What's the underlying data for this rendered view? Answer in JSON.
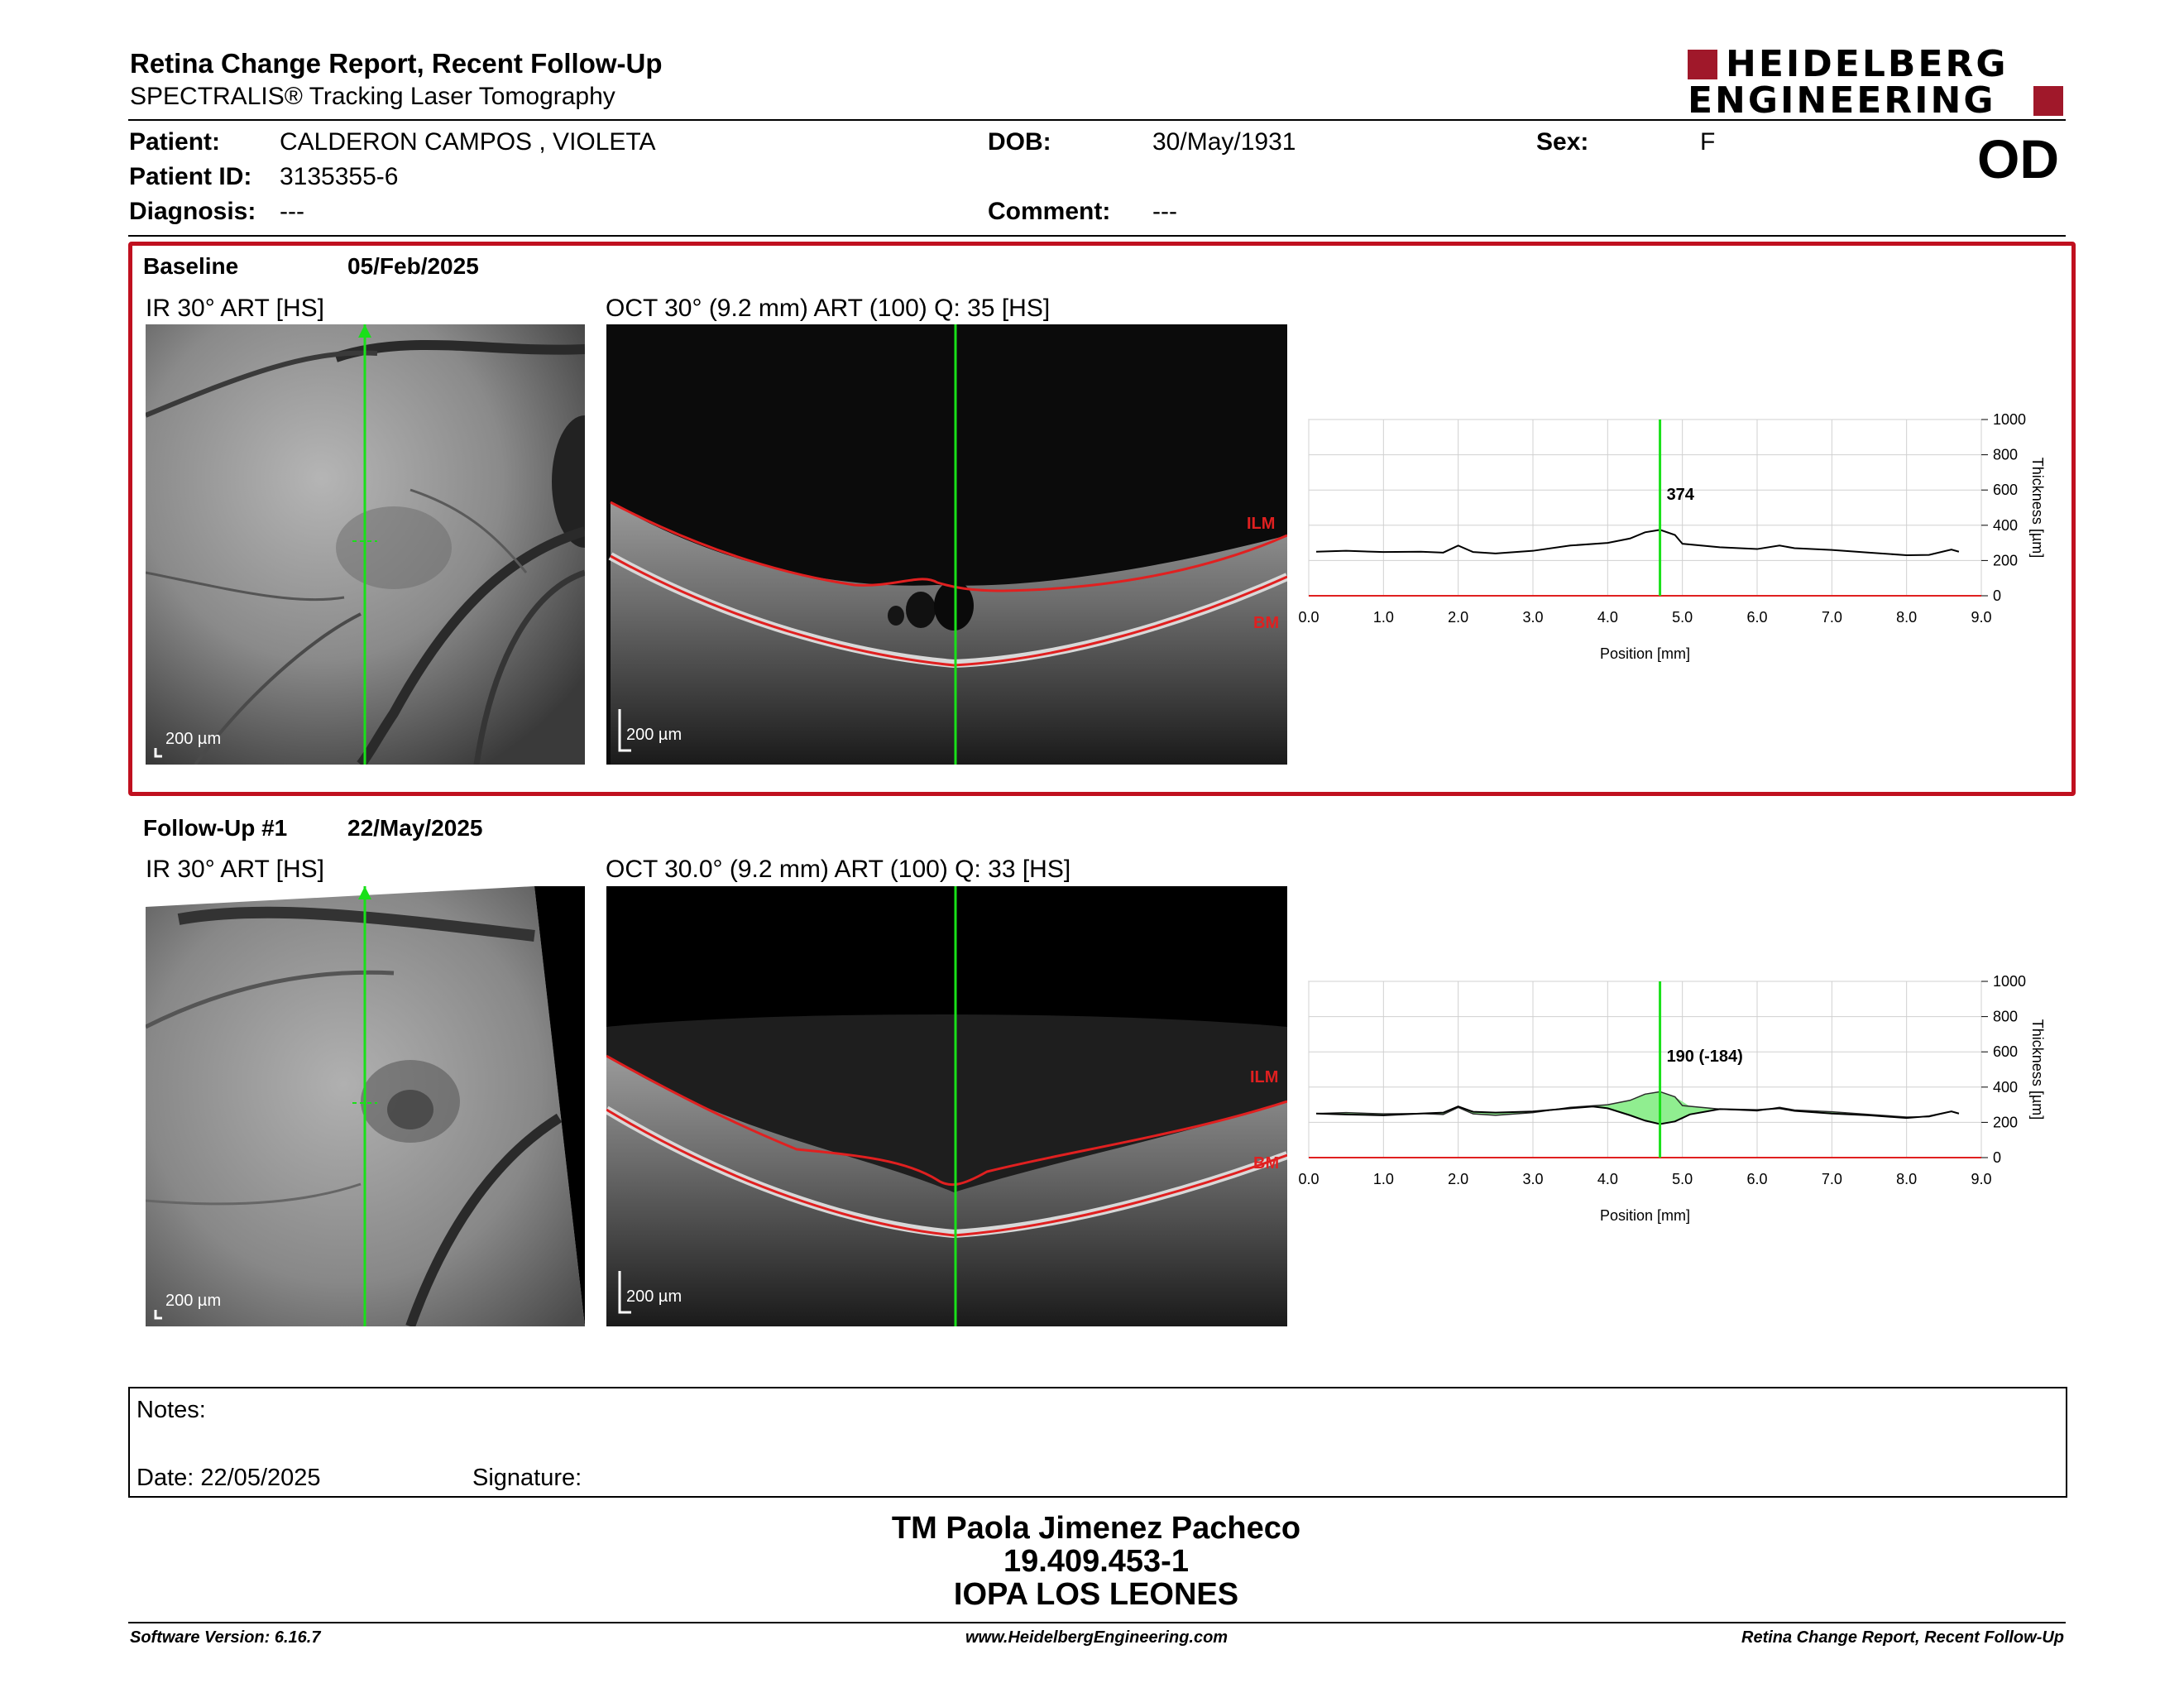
{
  "header": {
    "title": "Retina Change Report, Recent Follow-Up",
    "subtitle": "SPECTRALIS® Tracking Laser Tomography",
    "logo_line1": "HEIDELBERG",
    "logo_line2": "ENGINEERING",
    "eye": "OD"
  },
  "patient": {
    "patient_label": "Patient:",
    "patient_value": "CALDERON CAMPOS , VIOLETA",
    "id_label": "Patient ID:",
    "id_value": "3135355-6",
    "diagnosis_label": "Diagnosis:",
    "diagnosis_value": "---",
    "dob_label": "DOB:",
    "dob_value": "30/May/1931",
    "comment_label": "Comment:",
    "comment_value": "---",
    "sex_label": "Sex:",
    "sex_value": "F"
  },
  "baseline": {
    "label": "Baseline",
    "date": "05/Feb/2025",
    "ir_caption": "IR 30° ART [HS]",
    "oct_caption": "OCT 30° (9.2 mm) ART (100) Q: 35 [HS]",
    "scale": "200 µm",
    "ilm": "ILM",
    "bm": "BM",
    "chart_value_label": "374"
  },
  "followup": {
    "label": "Follow-Up #1",
    "date": "22/May/2025",
    "ir_caption": "IR 30° ART [HS]",
    "oct_caption": "OCT 30.0° (9.2 mm) ART (100) Q: 33 [HS]",
    "scale": "200 µm",
    "ilm": "ILM",
    "bm": "BM",
    "chart_value_label": "190 (-184)"
  },
  "chart_data": [
    {
      "type": "line",
      "xlabel": "Position [mm]",
      "ylabel": "Thickness [µm]",
      "xlim": [
        0,
        9.0
      ],
      "ylim": [
        0,
        1000
      ],
      "xticks": [
        "0.0",
        "1.0",
        "2.0",
        "3.0",
        "4.0",
        "5.0",
        "6.0",
        "7.0",
        "8.0",
        "9.0"
      ],
      "yticks": [
        "0",
        "200",
        "400",
        "600",
        "800",
        "1000"
      ],
      "grid": true,
      "marker_x": 4.7,
      "marker_value": "374",
      "series": [
        {
          "x": [
            0.1,
            0.5,
            1.0,
            1.5,
            1.8,
            2.0,
            2.2,
            2.5,
            3.0,
            3.5,
            4.0,
            4.3,
            4.5,
            4.7,
            4.9,
            5.0,
            5.5,
            6.0,
            6.3,
            6.5,
            7.0,
            7.5,
            8.0,
            8.3,
            8.6,
            8.7
          ],
          "values": [
            250,
            255,
            248,
            250,
            245,
            285,
            248,
            240,
            255,
            285,
            300,
            325,
            360,
            374,
            345,
            295,
            275,
            265,
            285,
            270,
            260,
            245,
            230,
            232,
            262,
            250
          ]
        }
      ]
    },
    {
      "type": "line",
      "xlabel": "Position [mm]",
      "ylabel": "Thickness [µm]",
      "xlim": [
        0,
        9.0
      ],
      "ylim": [
        0,
        1000
      ],
      "xticks": [
        "0.0",
        "1.0",
        "2.0",
        "3.0",
        "4.0",
        "5.0",
        "6.0",
        "7.0",
        "8.0",
        "9.0"
      ],
      "yticks": [
        "0",
        "200",
        "400",
        "600",
        "800",
        "1000"
      ],
      "grid": true,
      "marker_x": 4.7,
      "marker_value": "190 (-184)",
      "series": [
        {
          "x": [
            0.1,
            0.5,
            1.0,
            1.5,
            1.8,
            2.0,
            2.2,
            2.5,
            3.0,
            3.5,
            3.8,
            4.0,
            4.3,
            4.5,
            4.7,
            4.9,
            5.1,
            5.5,
            6.0,
            6.3,
            6.5,
            7.0,
            7.5,
            8.0,
            8.3,
            8.6,
            8.7
          ],
          "values": [
            250,
            245,
            240,
            250,
            255,
            290,
            260,
            255,
            262,
            280,
            290,
            280,
            240,
            210,
            190,
            205,
            245,
            275,
            270,
            280,
            265,
            250,
            240,
            225,
            235,
            262,
            250
          ]
        }
      ]
    }
  ],
  "notes": {
    "notes_label": "Notes:",
    "date_label": "Date: 22/05/2025",
    "signature_label": "Signature:"
  },
  "signature_block": {
    "name": "TM Paola Jimenez Pacheco",
    "id": "19.409.453-1",
    "org": "IOPA LOS LEONES"
  },
  "footer": {
    "version": "Software Version: 6.16.7",
    "url": "www.HeidelbergEngineering.com",
    "report": "Retina Change Report, Recent Follow-Up"
  },
  "colors": {
    "accent": "#c0101f",
    "logo": "#a0182a",
    "marker_green": "#19e019",
    "layer_red": "#e02020",
    "diff_fill": "#90ee90"
  }
}
